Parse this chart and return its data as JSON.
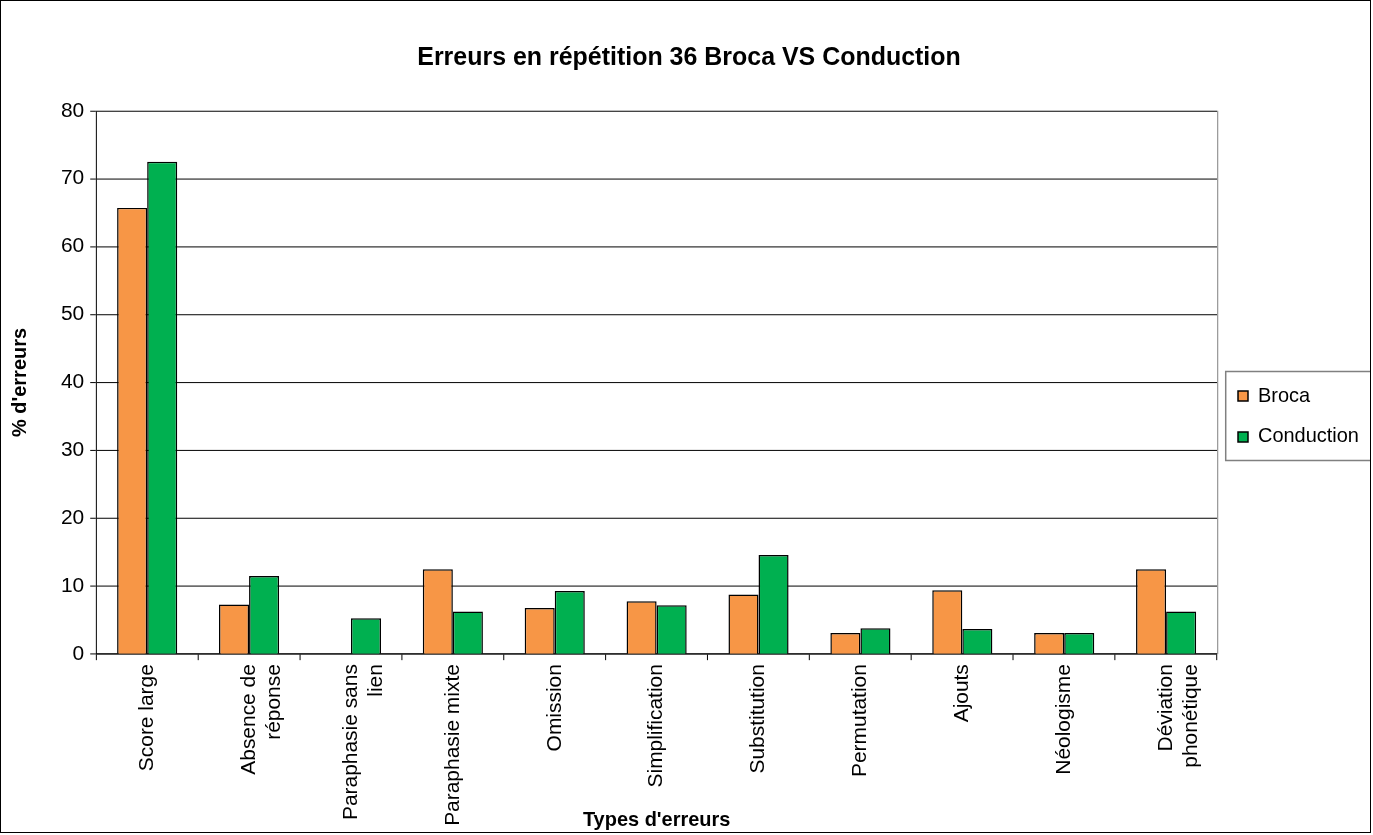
{
  "chart_data": {
    "type": "bar",
    "title": "Erreurs en répétition 36 Broca VS Conduction",
    "xlabel": "Types d'erreurs",
    "ylabel": "% d'erreurs",
    "categories": [
      "Score large",
      "Absence de réponse",
      "Paraphasie sans lien",
      "Paraphasie mixte",
      "Omission",
      "Simplification",
      "Substitution",
      "Permutation",
      "Ajouts",
      "Néologisme",
      "Déviation phonétique"
    ],
    "series": [
      {
        "name": "Broca",
        "color": "#f79646",
        "values": [
          65.7,
          7.3,
          0,
          12.5,
          6.8,
          7.8,
          8.8,
          3.1,
          9.4,
          3.1,
          12.5
        ]
      },
      {
        "name": "Conduction",
        "color": "#00b050",
        "values": [
          72.5,
          11.5,
          5.3,
          6.3,
          9.3,
          7.2,
          14.6,
          3.8,
          3.7,
          3.1,
          6.3
        ]
      }
    ],
    "ylim": [
      0,
      80
    ],
    "yticks": [
      0,
      10,
      20,
      30,
      40,
      50,
      60,
      70,
      80
    ],
    "grid": "y",
    "legend": "right"
  }
}
